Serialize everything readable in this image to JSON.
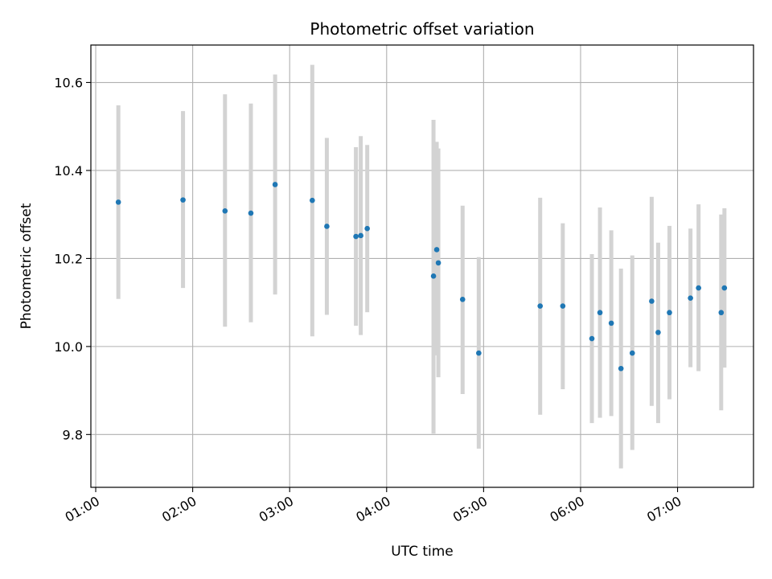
{
  "chart_data": {
    "type": "scatter",
    "title": "Photometric offset variation",
    "xlabel": "UTC time",
    "ylabel": "Photometric offset",
    "x_ticks": [
      "01:00",
      "02:00",
      "03:00",
      "04:00",
      "05:00",
      "06:00",
      "07:00"
    ],
    "y_ticks": [
      "9.8",
      "10.0",
      "10.2",
      "10.4",
      "10.6"
    ],
    "xlim": [
      "00:57",
      "07:47"
    ],
    "ylim": [
      9.68,
      10.685
    ],
    "grid": true,
    "point_color": "#1f77b4",
    "errorbar_color": "#d3d3d3",
    "points": [
      {
        "x": "01:14",
        "y": 10.328,
        "lo": 10.108,
        "hi": 10.548
      },
      {
        "x": "01:54",
        "y": 10.333,
        "lo": 10.133,
        "hi": 10.535
      },
      {
        "x": "02:20",
        "y": 10.308,
        "lo": 10.045,
        "hi": 10.573
      },
      {
        "x": "02:36",
        "y": 10.303,
        "lo": 10.055,
        "hi": 10.552
      },
      {
        "x": "02:51",
        "y": 10.368,
        "lo": 10.118,
        "hi": 10.618
      },
      {
        "x": "03:14",
        "y": 10.332,
        "lo": 10.023,
        "hi": 10.64
      },
      {
        "x": "03:23",
        "y": 10.273,
        "lo": 10.072,
        "hi": 10.474
      },
      {
        "x": "03:41",
        "y": 10.25,
        "lo": 10.047,
        "hi": 10.453
      },
      {
        "x": "03:44",
        "y": 10.252,
        "lo": 10.026,
        "hi": 10.478
      },
      {
        "x": "03:48",
        "y": 10.268,
        "lo": 10.078,
        "hi": 10.458
      },
      {
        "x": "04:29",
        "y": 10.16,
        "lo": 9.802,
        "hi": 10.515
      },
      {
        "x": "04:31",
        "y": 10.22,
        "lo": 9.98,
        "hi": 10.465
      },
      {
        "x": "04:32",
        "y": 10.19,
        "lo": 9.93,
        "hi": 10.45
      },
      {
        "x": "04:47",
        "y": 10.107,
        "lo": 9.892,
        "hi": 10.32
      },
      {
        "x": "04:57",
        "y": 9.985,
        "lo": 9.768,
        "hi": 10.203
      },
      {
        "x": "05:35",
        "y": 10.092,
        "lo": 9.845,
        "hi": 10.338
      },
      {
        "x": "05:49",
        "y": 10.092,
        "lo": 9.903,
        "hi": 10.28
      },
      {
        "x": "06:07",
        "y": 10.018,
        "lo": 9.826,
        "hi": 10.21
      },
      {
        "x": "06:12",
        "y": 10.077,
        "lo": 9.838,
        "hi": 10.316
      },
      {
        "x": "06:19",
        "y": 10.053,
        "lo": 9.842,
        "hi": 10.264
      },
      {
        "x": "06:25",
        "y": 9.95,
        "lo": 9.723,
        "hi": 10.177
      },
      {
        "x": "06:32",
        "y": 9.985,
        "lo": 9.765,
        "hi": 10.207
      },
      {
        "x": "06:44",
        "y": 10.103,
        "lo": 9.865,
        "hi": 10.34
      },
      {
        "x": "06:48",
        "y": 10.032,
        "lo": 9.826,
        "hi": 10.236
      },
      {
        "x": "06:55",
        "y": 10.077,
        "lo": 9.88,
        "hi": 10.274
      },
      {
        "x": "07:08",
        "y": 10.11,
        "lo": 9.953,
        "hi": 10.268
      },
      {
        "x": "07:13",
        "y": 10.133,
        "lo": 9.944,
        "hi": 10.323
      },
      {
        "x": "07:27",
        "y": 10.077,
        "lo": 9.855,
        "hi": 10.3
      },
      {
        "x": "07:29",
        "y": 10.133,
        "lo": 9.952,
        "hi": 10.314
      }
    ]
  }
}
